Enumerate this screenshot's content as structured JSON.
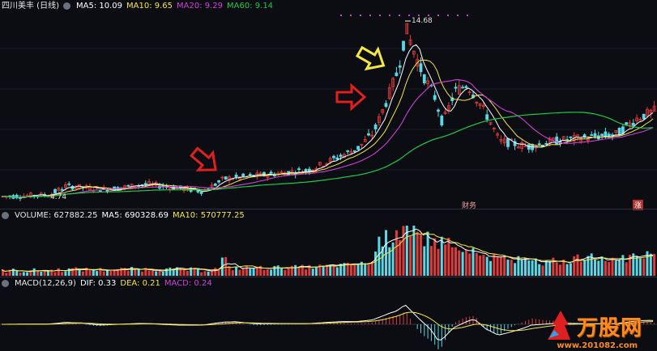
{
  "header": {
    "stock_title": "四川美丰 (日线)",
    "ma5": "MA5: 10.09",
    "ma10": "MA10: 9.65",
    "ma20": "MA20: 9.29",
    "ma60": "MA60: 9.14"
  },
  "volume_header": {
    "title": "VOLUME: 627882.25",
    "ma5": "MA5: 690328.69",
    "ma10": "MA10: 570777.25"
  },
  "macd_header": {
    "title": "MACD(12,26,9)",
    "dif": "DIF: 0.33",
    "dea": "DEA: 0.21",
    "macd": "MACD: 0.24"
  },
  "annotations": {
    "high_label": "14.68",
    "low_label": "4.74",
    "finance_label": "财",
    "finance_label2": "务",
    "rise_label": "涨"
  },
  "watermark": {
    "text": "万股网",
    "url": "www.201082.com"
  },
  "colors": {
    "up": "#e03b3b",
    "down": "#5ad8e6",
    "ma5": "#ffffff",
    "ma10": "#f5e742",
    "ma20": "#d040d8",
    "ma60": "#1fc94a",
    "arrow_red": "#e02020",
    "arrow_yellow": "#f5e742"
  },
  "chart_data": {
    "type": "candlestick",
    "y_range": [
      4.5,
      15.2
    ],
    "high": 14.68,
    "low": 4.74,
    "series_ma": [
      "MA5",
      "MA10",
      "MA20",
      "MA60"
    ]
  }
}
